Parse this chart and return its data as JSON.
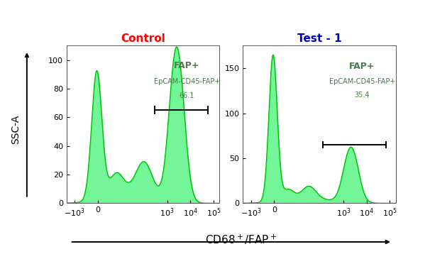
{
  "control_title": "Control",
  "control_title_color": "#ff0000",
  "test_title": "Test - 1",
  "test_title_color": "#0000cc",
  "fill_color": "#00ee44",
  "fill_alpha": 0.55,
  "line_color": "#00bb00",
  "xlabel": "CD68⁺/FAP⁺",
  "ylabel": "SSC-A",
  "control_ylim": [
    0,
    110
  ],
  "test_ylim": [
    0,
    175
  ],
  "control_yticks": [
    0,
    20,
    40,
    60,
    80,
    100
  ],
  "test_yticks": [
    0,
    50,
    100,
    150
  ],
  "annotation1_line1": "FAP+",
  "annotation1_line2": "EpCAM-CD45-FAP+",
  "annotation1_line3": "66.1",
  "annotation2_line1": "FAP+",
  "annotation2_line2": "EpCAM-CD45-FAP+",
  "annotation2_line3": "35.4",
  "annotation_color": "#4a7a4a",
  "bracket_color": "#000000",
  "bg_color": "#ffffff",
  "title_fontsize": 11,
  "label_fontsize": 10,
  "tick_fontsize": 8,
  "annot_fs_large": 9,
  "annot_fs_small": 7.0
}
